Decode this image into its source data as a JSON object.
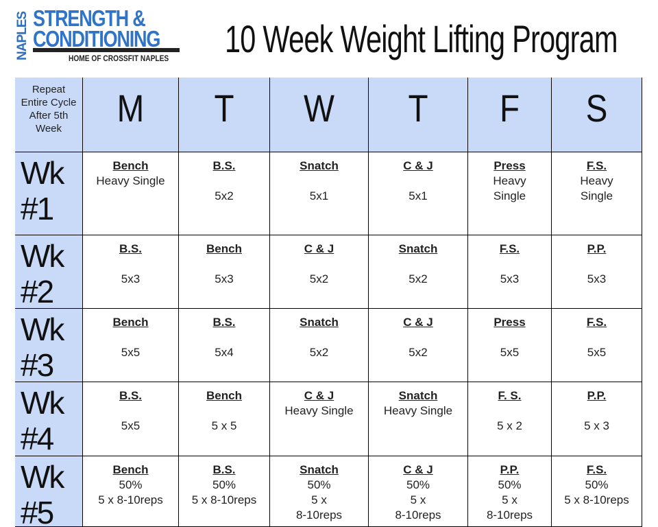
{
  "logo": {
    "side": "NAPLES",
    "line1": "STRENGTH &",
    "line2": "CONDITIONING",
    "tagline": "HOME OF CROSSFIT NAPLES"
  },
  "header": {
    "title": "10 Week Weight Lifting Program"
  },
  "table": {
    "corner": "Repeat Entire Cycle After 5th Week",
    "days": [
      "M",
      "T",
      "W",
      "T",
      "F",
      "S"
    ],
    "rows": [
      {
        "week": "Wk #1",
        "cells": [
          {
            "lift": "Bench",
            "lines": [
              "Heavy Single"
            ]
          },
          {
            "lift": "B.S.",
            "lines": [
              "5x2"
            ]
          },
          {
            "lift": "Snatch",
            "lines": [
              "5x1"
            ]
          },
          {
            "lift": "C & J",
            "lines": [
              "5x1"
            ]
          },
          {
            "lift": "Press",
            "lines": [
              "Heavy",
              "Single"
            ]
          },
          {
            "lift": "F.S.",
            "lines": [
              "Heavy",
              "Single"
            ]
          }
        ]
      },
      {
        "week": "Wk #2",
        "cells": [
          {
            "lift": "B.S.",
            "lines": [
              "5x3"
            ]
          },
          {
            "lift": "Bench",
            "lines": [
              "5x3"
            ]
          },
          {
            "lift": "C & J",
            "lines": [
              "5x2"
            ]
          },
          {
            "lift": "Snatch",
            "lines": [
              "5x2"
            ]
          },
          {
            "lift": "F.S.",
            "lines": [
              "5x3"
            ]
          },
          {
            "lift": "P.P.",
            "lines": [
              "5x3"
            ]
          }
        ]
      },
      {
        "week": "Wk #3",
        "cells": [
          {
            "lift": "Bench",
            "lines": [
              "5x5"
            ]
          },
          {
            "lift": "B.S.",
            "lines": [
              "5x4"
            ]
          },
          {
            "lift": "Snatch",
            "lines": [
              "5x2"
            ]
          },
          {
            "lift": "C & J",
            "lines": [
              "5x2"
            ]
          },
          {
            "lift": "Press",
            "lines": [
              "5x5"
            ]
          },
          {
            "lift": "F.S.",
            "lines": [
              "5x5"
            ]
          }
        ]
      },
      {
        "week": "Wk #4",
        "cells": [
          {
            "lift": "B.S.",
            "lines": [
              "5x5"
            ]
          },
          {
            "lift": "Bench",
            "lines": [
              "5 x 5"
            ]
          },
          {
            "lift": "C & J",
            "lines": [
              "Heavy Single"
            ]
          },
          {
            "lift": "Snatch",
            "lines": [
              "Heavy Single"
            ]
          },
          {
            "lift": "F. S.",
            "lines": [
              "5 x 2"
            ]
          },
          {
            "lift": "P.P.",
            "lines": [
              "5 x 3"
            ]
          }
        ]
      },
      {
        "week": "Wk #5",
        "cells": [
          {
            "lift": "Bench",
            "lines": [
              "50%",
              "5 x 8-10reps"
            ]
          },
          {
            "lift": "B.S.",
            "lines": [
              "50%",
              "5 x 8-10reps"
            ]
          },
          {
            "lift": "Snatch",
            "lines": [
              "50%",
              "5 x",
              "8-10reps"
            ]
          },
          {
            "lift": "C & J",
            "lines": [
              "50%",
              "5 x",
              "8-10reps"
            ]
          },
          {
            "lift": "P.P.",
            "lines": [
              "50%",
              "5 x",
              "8-10reps"
            ]
          },
          {
            "lift": "F.S.",
            "lines": [
              "50%",
              "5 x 8-10reps"
            ]
          }
        ]
      }
    ]
  }
}
